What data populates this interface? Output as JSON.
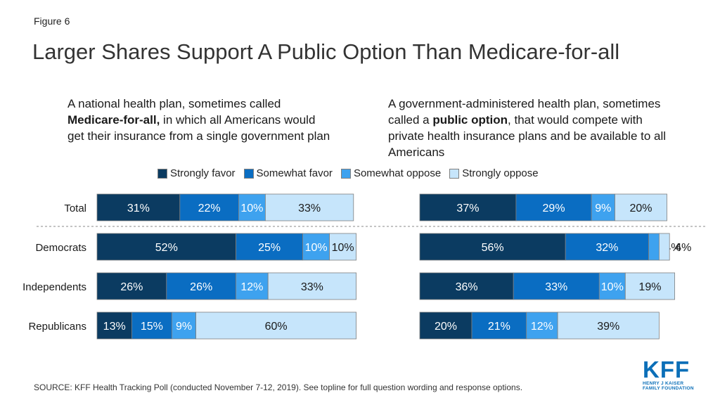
{
  "figure_label": "Figure 6",
  "title": "Larger Shares Support A Public Option Than Medicare-for-all",
  "left_panel": {
    "line1": "A national health plan, sometimes called",
    "line2_bold": "Medicare-for-all,",
    "line2_rest": " in which all Americans would",
    "line3": "get their insurance from a single government plan"
  },
  "right_panel": {
    "line1": "A government-administered health plan, sometimes",
    "line2_pre": "called a ",
    "line2_bold": "public option",
    "line2_rest": ", that would compete with",
    "line3": "private health insurance plans and be available to all",
    "line4": "Americans"
  },
  "legend": {
    "strongly_favor": "Strongly favor",
    "somewhat_favor": "Somewhat favor",
    "somewhat_oppose": "Somewhat oppose",
    "strongly_oppose": "Strongly oppose"
  },
  "colors": {
    "strongly_favor": "#0b3b61",
    "somewhat_favor": "#0a6dc2",
    "somewhat_oppose": "#3ea2ef",
    "strongly_oppose": "#c6e5fb"
  },
  "chart_data": [
    {
      "type": "bar",
      "orientation": "horizontal-stacked",
      "panel": "Medicare-for-all",
      "categories": [
        "Total",
        "Democrats",
        "Independents",
        "Republicans"
      ],
      "series": [
        {
          "name": "Strongly favor",
          "values": [
            31,
            52,
            26,
            13
          ]
        },
        {
          "name": "Somewhat favor",
          "values": [
            22,
            25,
            26,
            15
          ]
        },
        {
          "name": "Somewhat oppose",
          "values": [
            10,
            10,
            12,
            9
          ]
        },
        {
          "name": "Strongly oppose",
          "values": [
            33,
            10,
            33,
            60
          ]
        }
      ],
      "legend": "top",
      "grid": false
    },
    {
      "type": "bar",
      "orientation": "horizontal-stacked",
      "panel": "Public option",
      "categories": [
        "Total",
        "Democrats",
        "Independents",
        "Republicans"
      ],
      "series": [
        {
          "name": "Strongly favor",
          "values": [
            37,
            56,
            36,
            20
          ]
        },
        {
          "name": "Somewhat favor",
          "values": [
            29,
            32,
            33,
            21
          ]
        },
        {
          "name": "Somewhat oppose",
          "values": [
            9,
            4,
            10,
            12
          ]
        },
        {
          "name": "Strongly oppose",
          "values": [
            20,
            4,
            19,
            39
          ]
        }
      ],
      "legend": "top",
      "grid": false
    }
  ],
  "source": "SOURCE: KFF Health Tracking Poll (conducted November 7-12, 2019). See topline for full question wording and response options.",
  "logo": {
    "main": "KFF",
    "sub1": "HENRY J KAISER",
    "sub2": "FAMILY FOUNDATION"
  }
}
